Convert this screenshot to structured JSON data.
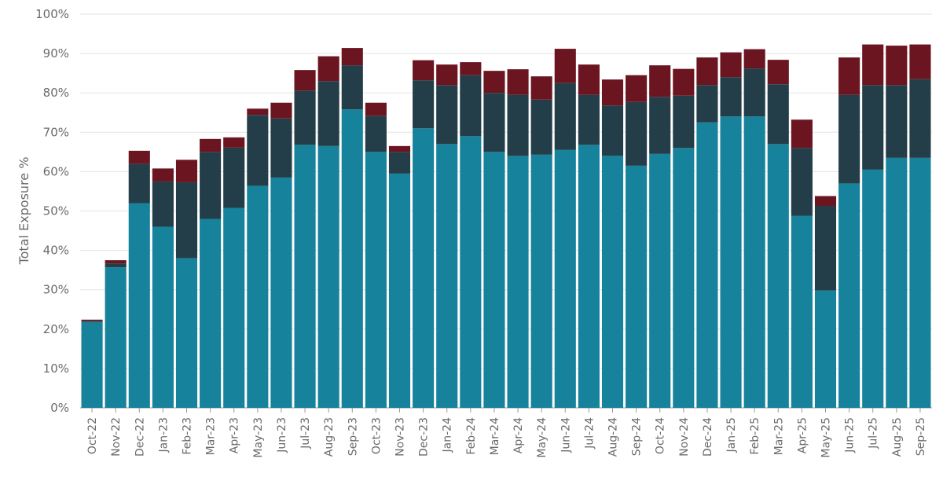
{
  "chart_data": {
    "type": "bar",
    "stacked": true,
    "title": "",
    "xlabel": "",
    "ylabel": "Total Exposure %",
    "ylim": [
      0,
      100
    ],
    "y_tick_values": [
      0,
      10,
      20,
      30,
      40,
      50,
      60,
      70,
      80,
      90,
      100
    ],
    "y_tick_labels": [
      "0%",
      "10%",
      "20%",
      "30%",
      "40%",
      "50%",
      "60%",
      "70%",
      "80%",
      "90%",
      "100%"
    ],
    "grid": true,
    "legend": "none",
    "categories": [
      "Oct-22",
      "Nov-22",
      "Dec-22",
      "Jan-23",
      "Feb-23",
      "Mar-23",
      "Apr-23",
      "May-23",
      "Jun-23",
      "Jul-23",
      "Aug-23",
      "Sep-23",
      "Oct-23",
      "Nov-23",
      "Dec-23",
      "Jan-24",
      "Feb-24",
      "Mar-24",
      "Apr-24",
      "May-24",
      "Jun-24",
      "Jul-24",
      "Aug-24",
      "Sep-24",
      "Oct-24",
      "Nov-24",
      "Dec-24",
      "Jan-25",
      "Feb-25",
      "Mar-25",
      "Apr-25",
      "May-25",
      "Jun-25",
      "Jul-25",
      "Aug-25",
      "Sep-25"
    ],
    "series": [
      {
        "color": "#17829b",
        "values": [
          21.8,
          35.7,
          52.0,
          46.0,
          38.0,
          48.0,
          50.8,
          56.4,
          58.5,
          66.8,
          66.5,
          75.8,
          65.0,
          59.5,
          71.0,
          67.0,
          69.0,
          65.0,
          64.0,
          64.3,
          65.5,
          66.8,
          64.0,
          61.5,
          64.5,
          66.0,
          72.5,
          74.0,
          74.0,
          67.0,
          48.8,
          29.8,
          57.0,
          60.5,
          63.5,
          63.5
        ]
      },
      {
        "color": "#233e48",
        "values": [
          0.3,
          1.0,
          10.0,
          11.5,
          19.3,
          17.0,
          15.3,
          18.0,
          15.0,
          13.8,
          16.5,
          11.2,
          9.2,
          5.5,
          12.2,
          15.0,
          15.5,
          15.0,
          15.5,
          14.0,
          17.0,
          12.7,
          12.8,
          16.2,
          14.5,
          13.3,
          9.5,
          10.0,
          12.2,
          15.2,
          17.2,
          21.5,
          22.5,
          21.5,
          18.5,
          20.0
        ]
      },
      {
        "color": "#6b1520",
        "values": [
          0.3,
          0.8,
          3.3,
          3.3,
          5.7,
          3.3,
          2.6,
          1.6,
          4.0,
          5.2,
          6.3,
          4.4,
          3.3,
          1.5,
          5.1,
          5.2,
          3.3,
          5.6,
          6.5,
          5.9,
          8.7,
          7.7,
          6.6,
          6.8,
          8.0,
          6.8,
          7.0,
          6.3,
          4.9,
          6.2,
          7.2,
          2.5,
          9.5,
          10.3,
          10.0,
          8.8
        ]
      }
    ]
  }
}
